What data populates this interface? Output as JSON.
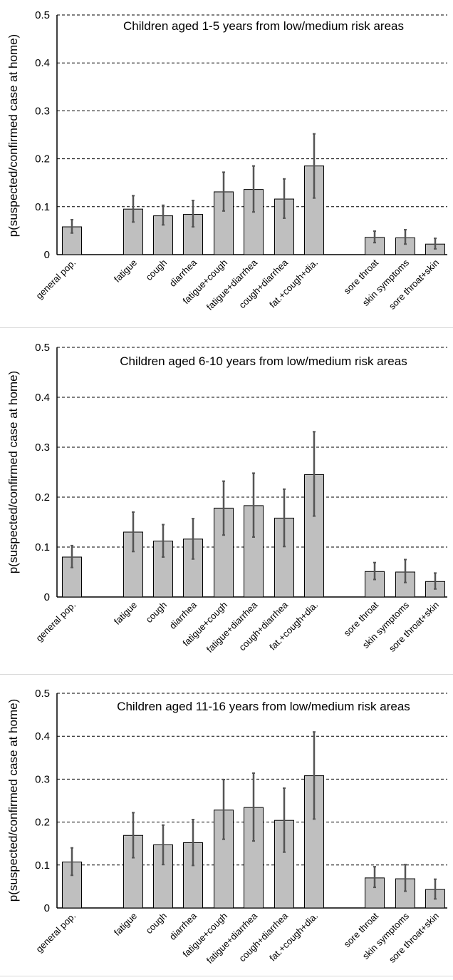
{
  "figure": {
    "ylabel": "p(suspected/confirmed case at home)",
    "ylim": [
      0,
      0.5
    ],
    "yticks": [
      0,
      0.1,
      0.2,
      0.3,
      0.4,
      0.5
    ],
    "ytick_labels": [
      "0",
      "0.1",
      "0.2",
      "0.3",
      "0.4",
      "0.5"
    ],
    "bar_color": "#bfbfbf",
    "grid": "horizontal dashed"
  },
  "chart_data": [
    {
      "type": "bar",
      "title": "Children aged 1-5 years from low/medium risk areas",
      "ylabel": "p(suspected/confirmed case at home)",
      "ylim": [
        0,
        0.5
      ],
      "categories": [
        "general pop.",
        "fatigue",
        "cough",
        "diarrhea",
        "fatigue+cough",
        "fatigue+diarrhea",
        "cough+diarrhea",
        "fat.+cough+dia.",
        "sore throat",
        "skin symptoms",
        "sore throat+skin"
      ],
      "values": [
        0.058,
        0.095,
        0.081,
        0.084,
        0.131,
        0.136,
        0.116,
        0.185,
        0.036,
        0.035,
        0.022
      ],
      "error_low": [
        0.045,
        0.068,
        0.062,
        0.058,
        0.091,
        0.089,
        0.076,
        0.118,
        0.025,
        0.022,
        0.012
      ],
      "error_high": [
        0.073,
        0.123,
        0.103,
        0.113,
        0.172,
        0.185,
        0.158,
        0.252,
        0.049,
        0.052,
        0.034
      ]
    },
    {
      "type": "bar",
      "title": "Children aged 6-10 years from low/medium risk areas",
      "ylabel": "p(suspected/confirmed case at home)",
      "ylim": [
        0,
        0.5
      ],
      "categories": [
        "general pop.",
        "fatigue",
        "cough",
        "diarrhea",
        "fatigue+cough",
        "fatigue+diarrhea",
        "cough+diarrhea",
        "fat.+cough+dia.",
        "sore throat",
        "skin symptoms",
        "sore throat+skin"
      ],
      "values": [
        0.08,
        0.13,
        0.112,
        0.116,
        0.178,
        0.183,
        0.158,
        0.245,
        0.051,
        0.05,
        0.031
      ],
      "error_low": [
        0.059,
        0.091,
        0.08,
        0.076,
        0.124,
        0.12,
        0.101,
        0.162,
        0.035,
        0.029,
        0.016
      ],
      "error_high": [
        0.103,
        0.17,
        0.145,
        0.157,
        0.232,
        0.248,
        0.216,
        0.331,
        0.069,
        0.075,
        0.048
      ]
    },
    {
      "type": "bar",
      "title": "Children aged 11-16 years from low/medium risk areas",
      "ylabel": "p(suspected/confirmed case at home)",
      "ylim": [
        0,
        0.5
      ],
      "categories": [
        "general pop.",
        "fatigue",
        "cough",
        "diarrhea",
        "fatigue+cough",
        "fatigue+diarrhea",
        "cough+diarrhea",
        "fat.+cough+dia.",
        "sore throat",
        "skin symptoms",
        "sore throat+skin"
      ],
      "values": [
        0.107,
        0.169,
        0.147,
        0.152,
        0.228,
        0.234,
        0.204,
        0.308,
        0.07,
        0.068,
        0.043
      ],
      "error_low": [
        0.076,
        0.117,
        0.101,
        0.099,
        0.16,
        0.156,
        0.13,
        0.207,
        0.048,
        0.039,
        0.021
      ],
      "error_high": [
        0.14,
        0.222,
        0.193,
        0.206,
        0.299,
        0.314,
        0.279,
        0.41,
        0.096,
        0.101,
        0.067
      ]
    }
  ]
}
